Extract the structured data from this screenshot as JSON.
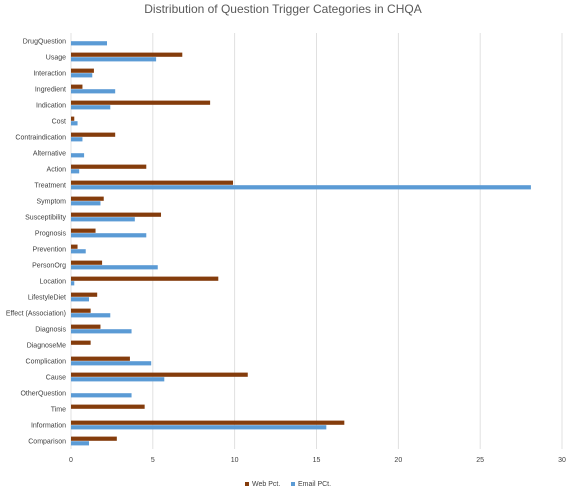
{
  "chart_data": {
    "type": "bar",
    "orientation": "horizontal",
    "title": "Distribution of Question Trigger Categories in CHQA",
    "xlabel": "",
    "ylabel": "",
    "xlim": [
      0,
      30
    ],
    "xticks": [
      "0",
      "5",
      "10",
      "15",
      "20",
      "25",
      "30"
    ],
    "grid": true,
    "legend_position": "bottom",
    "categories": [
      "DrugQuestion",
      "Usage",
      "Interaction",
      "Ingredient",
      "Indication",
      "Cost",
      "Contraindication",
      "Alternative",
      "Action",
      "Treatment",
      "Symptom",
      "Susceptibility",
      "Prognosis",
      "Prevention",
      "PersonOrg",
      "Location",
      "LifestyleDiet",
      "Effect (Association)",
      "Diagnosis",
      "DiagnoseMe",
      "Complication",
      "Cause",
      "OtherQuestion",
      "Time",
      "Information",
      "Comparison"
    ],
    "series": [
      {
        "name": "Web Pct.",
        "color": "#843C0C",
        "values": [
          0,
          6.8,
          1.4,
          0.7,
          8.5,
          0.2,
          2.7,
          0,
          4.6,
          9.9,
          2.0,
          5.5,
          1.5,
          0.4,
          1.9,
          9.0,
          1.6,
          1.2,
          1.8,
          1.2,
          3.6,
          10.8,
          0,
          4.5,
          16.7,
          2.8
        ]
      },
      {
        "name": "Email PCt.",
        "color": "#5B9BD5",
        "values": [
          2.2,
          5.2,
          1.3,
          2.7,
          2.4,
          0.4,
          0.7,
          0.8,
          0.5,
          28.1,
          1.8,
          3.9,
          4.6,
          0.9,
          5.3,
          0.2,
          1.1,
          2.4,
          3.7,
          0,
          4.9,
          5.7,
          3.7,
          0,
          15.6,
          1.1
        ]
      }
    ]
  }
}
